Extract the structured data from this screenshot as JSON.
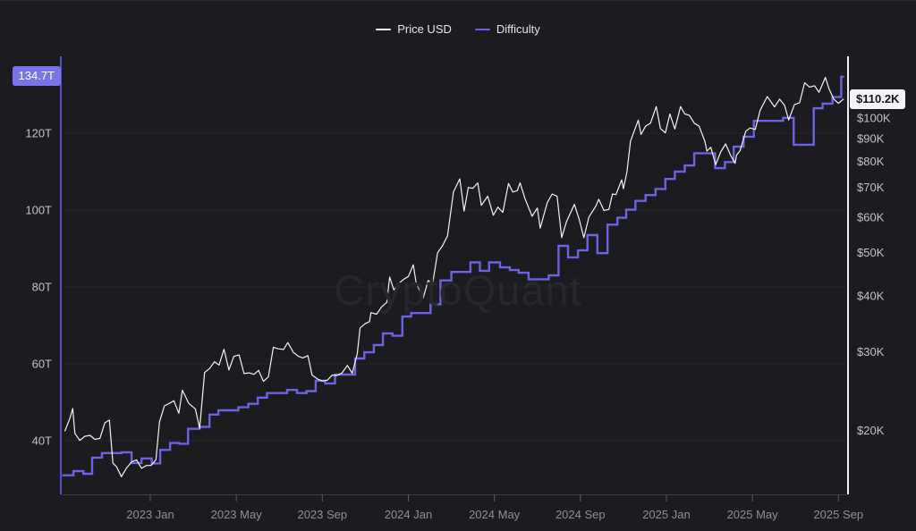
{
  "watermark": "CryptoQuant",
  "legend": {
    "price_label": "Price USD",
    "difficulty_label": "Difficulty"
  },
  "colors": {
    "background": "#1b1b20",
    "gridline": "#24242a",
    "price_line": "#f4f4f6",
    "difficulty_line": "#6b63e2",
    "left_axis": "#564fd0",
    "right_axis": "#ededf0",
    "x_label": "#8f8f96",
    "y_label": "#c2c2c8",
    "badge_left_bg": "#7974e8",
    "badge_right_bg": "#f4f4f6",
    "watermark": "#27272e"
  },
  "chart_data": {
    "type": "line",
    "title": "",
    "x_axis": {
      "ticks": [
        {
          "label": "2023 Jan",
          "date": "2023-01-01"
        },
        {
          "label": "2023 May",
          "date": "2023-05-01"
        },
        {
          "label": "2023 Sep",
          "date": "2023-09-01"
        },
        {
          "label": "2024 Jan",
          "date": "2024-01-01"
        },
        {
          "label": "2024 May",
          "date": "2024-05-01"
        },
        {
          "label": "2024 Sep",
          "date": "2024-09-01"
        },
        {
          "label": "2025 Jan",
          "date": "2025-01-01"
        },
        {
          "label": "2025 May",
          "date": "2025-05-01"
        },
        {
          "label": "2025 Sep",
          "date": "2025-09-01"
        }
      ],
      "range": [
        "2022-08-26",
        "2025-09-10"
      ]
    },
    "y_left": {
      "title": "Difficulty",
      "scale": "linear",
      "unit": "T",
      "ticks": [
        {
          "label": "40T",
          "value": 40
        },
        {
          "label": "60T",
          "value": 60
        },
        {
          "label": "80T",
          "value": 80
        },
        {
          "label": "100T",
          "value": 100
        },
        {
          "label": "120T",
          "value": 120
        }
      ],
      "current_label": "134.7T",
      "current_value": 134.7
    },
    "y_right": {
      "title": "Price USD",
      "scale": "log",
      "unit": "USD",
      "ticks": [
        {
          "label": "$20K",
          "value": 20000
        },
        {
          "label": "$30K",
          "value": 30000
        },
        {
          "label": "$40K",
          "value": 40000
        },
        {
          "label": "$50K",
          "value": 50000
        },
        {
          "label": "$60K",
          "value": 60000
        },
        {
          "label": "$70K",
          "value": 70000
        },
        {
          "label": "$80K",
          "value": 80000
        },
        {
          "label": "$90K",
          "value": 90000
        },
        {
          "label": "$100K",
          "value": 100000
        }
      ],
      "current_label": "$110.2K",
      "current_value": 110200
    },
    "series": [
      {
        "name": "Price USD",
        "axis": "right",
        "style": "line",
        "color": "#f4f4f6",
        "data": [
          [
            "2022-09-02",
            19950
          ],
          [
            "2022-09-09",
            21300
          ],
          [
            "2022-09-13",
            22400
          ],
          [
            "2022-09-16",
            19700
          ],
          [
            "2022-09-23",
            19000
          ],
          [
            "2022-09-30",
            19400
          ],
          [
            "2022-10-07",
            19500
          ],
          [
            "2022-10-14",
            19100
          ],
          [
            "2022-10-21",
            19200
          ],
          [
            "2022-10-28",
            20800
          ],
          [
            "2022-11-04",
            21100
          ],
          [
            "2022-11-09",
            16900
          ],
          [
            "2022-11-14",
            16600
          ],
          [
            "2022-11-21",
            15760
          ],
          [
            "2022-11-28",
            16450
          ],
          [
            "2022-12-05",
            17000
          ],
          [
            "2022-12-12",
            17200
          ],
          [
            "2022-12-19",
            16450
          ],
          [
            "2022-12-26",
            16700
          ],
          [
            "2023-01-02",
            16700
          ],
          [
            "2023-01-09",
            17200
          ],
          [
            "2023-01-14",
            20900
          ],
          [
            "2023-01-21",
            22700
          ],
          [
            "2023-01-28",
            23000
          ],
          [
            "2023-02-04",
            23300
          ],
          [
            "2023-02-11",
            21850
          ],
          [
            "2023-02-16",
            24600
          ],
          [
            "2023-02-25",
            23000
          ],
          [
            "2023-03-04",
            22350
          ],
          [
            "2023-03-10",
            20200
          ],
          [
            "2023-03-17",
            26950
          ],
          [
            "2023-03-24",
            27500
          ],
          [
            "2023-03-31",
            28500
          ],
          [
            "2023-04-07",
            28000
          ],
          [
            "2023-04-14",
            30400
          ],
          [
            "2023-04-21",
            27300
          ],
          [
            "2023-04-28",
            29300
          ],
          [
            "2023-05-05",
            29500
          ],
          [
            "2023-05-12",
            26800
          ],
          [
            "2023-05-19",
            26900
          ],
          [
            "2023-05-26",
            26700
          ],
          [
            "2023-06-02",
            27250
          ],
          [
            "2023-06-09",
            25750
          ],
          [
            "2023-06-16",
            26350
          ],
          [
            "2023-06-23",
            30700
          ],
          [
            "2023-06-30",
            30450
          ],
          [
            "2023-07-07",
            30350
          ],
          [
            "2023-07-13",
            31450
          ],
          [
            "2023-07-21",
            29900
          ],
          [
            "2023-07-28",
            29300
          ],
          [
            "2023-08-04",
            29050
          ],
          [
            "2023-08-11",
            29400
          ],
          [
            "2023-08-17",
            26600
          ],
          [
            "2023-08-25",
            26050
          ],
          [
            "2023-09-01",
            25800
          ],
          [
            "2023-09-08",
            25900
          ],
          [
            "2023-09-15",
            26600
          ],
          [
            "2023-09-22",
            26550
          ],
          [
            "2023-09-29",
            26900
          ],
          [
            "2023-10-06",
            27950
          ],
          [
            "2023-10-13",
            26850
          ],
          [
            "2023-10-20",
            29700
          ],
          [
            "2023-10-24",
            33900
          ],
          [
            "2023-10-31",
            34650
          ],
          [
            "2023-11-07",
            35050
          ],
          [
            "2023-11-09",
            36700
          ],
          [
            "2023-11-17",
            36400
          ],
          [
            "2023-11-24",
            37800
          ],
          [
            "2023-12-01",
            38700
          ],
          [
            "2023-12-05",
            44100
          ],
          [
            "2023-12-11",
            41250
          ],
          [
            "2023-12-18",
            42650
          ],
          [
            "2023-12-25",
            43600
          ],
          [
            "2024-01-01",
            44200
          ],
          [
            "2024-01-08",
            46950
          ],
          [
            "2024-01-12",
            42800
          ],
          [
            "2024-01-22",
            39550
          ],
          [
            "2024-01-29",
            43300
          ],
          [
            "2024-02-05",
            42700
          ],
          [
            "2024-02-12",
            49950
          ],
          [
            "2024-02-19",
            51800
          ],
          [
            "2024-02-26",
            54500
          ],
          [
            "2024-03-04",
            68300
          ],
          [
            "2024-03-13",
            73100
          ],
          [
            "2024-03-19",
            61900
          ],
          [
            "2024-03-25",
            69900
          ],
          [
            "2024-04-01",
            69650
          ],
          [
            "2024-04-08",
            71600
          ],
          [
            "2024-04-13",
            63800
          ],
          [
            "2024-04-22",
            66850
          ],
          [
            "2024-04-30",
            60600
          ],
          [
            "2024-05-06",
            63200
          ],
          [
            "2024-05-13",
            61500
          ],
          [
            "2024-05-21",
            71400
          ],
          [
            "2024-05-27",
            68300
          ],
          [
            "2024-06-03",
            68800
          ],
          [
            "2024-06-07",
            71600
          ],
          [
            "2024-06-14",
            66000
          ],
          [
            "2024-06-24",
            60300
          ],
          [
            "2024-07-01",
            62900
          ],
          [
            "2024-07-05",
            56700
          ],
          [
            "2024-07-15",
            64700
          ],
          [
            "2024-07-22",
            67600
          ],
          [
            "2024-07-29",
            66800
          ],
          [
            "2024-08-05",
            54000
          ],
          [
            "2024-08-12",
            58700
          ],
          [
            "2024-08-23",
            64100
          ],
          [
            "2024-08-30",
            59100
          ],
          [
            "2024-09-06",
            53950
          ],
          [
            "2024-09-13",
            60000
          ],
          [
            "2024-09-23",
            63600
          ],
          [
            "2024-09-27",
            65800
          ],
          [
            "2024-10-04",
            62100
          ],
          [
            "2024-10-11",
            62450
          ],
          [
            "2024-10-16",
            67600
          ],
          [
            "2024-10-21",
            67400
          ],
          [
            "2024-10-29",
            72700
          ],
          [
            "2024-11-01",
            69500
          ],
          [
            "2024-11-06",
            75600
          ],
          [
            "2024-11-11",
            88700
          ],
          [
            "2024-11-22",
            98900
          ],
          [
            "2024-11-26",
            91900
          ],
          [
            "2024-12-02",
            95900
          ],
          [
            "2024-12-09",
            97400
          ],
          [
            "2024-12-17",
            106100
          ],
          [
            "2024-12-23",
            94700
          ],
          [
            "2024-12-30",
            92600
          ],
          [
            "2025-01-06",
            102100
          ],
          [
            "2025-01-13",
            94500
          ],
          [
            "2025-01-21",
            106100
          ],
          [
            "2025-01-27",
            102100
          ],
          [
            "2025-02-03",
            101400
          ],
          [
            "2025-02-10",
            97400
          ],
          [
            "2025-02-17",
            95800
          ],
          [
            "2025-02-25",
            88700
          ],
          [
            "2025-02-28",
            84350
          ],
          [
            "2025-03-03",
            86000
          ],
          [
            "2025-03-10",
            78600
          ],
          [
            "2025-03-17",
            84000
          ],
          [
            "2025-03-24",
            87500
          ],
          [
            "2025-03-31",
            82550
          ],
          [
            "2025-04-07",
            79200
          ],
          [
            "2025-04-09",
            82600
          ],
          [
            "2025-04-14",
            84500
          ],
          [
            "2025-04-22",
            93400
          ],
          [
            "2025-04-28",
            95000
          ],
          [
            "2025-05-05",
            94300
          ],
          [
            "2025-05-12",
            104100
          ],
          [
            "2025-05-22",
            111700
          ],
          [
            "2025-05-26",
            109400
          ],
          [
            "2025-06-02",
            105900
          ],
          [
            "2025-06-09",
            110200
          ],
          [
            "2025-06-16",
            106800
          ],
          [
            "2025-06-22",
            99000
          ],
          [
            "2025-06-30",
            107100
          ],
          [
            "2025-07-07",
            108200
          ],
          [
            "2025-07-14",
            119900
          ],
          [
            "2025-07-21",
            117300
          ],
          [
            "2025-07-28",
            118100
          ],
          [
            "2025-08-04",
            114200
          ],
          [
            "2025-08-13",
            123300
          ],
          [
            "2025-08-18",
            116300
          ],
          [
            "2025-08-25",
            110100
          ],
          [
            "2025-09-01",
            107900
          ],
          [
            "2025-09-08",
            110200
          ]
        ]
      },
      {
        "name": "Difficulty",
        "axis": "left",
        "style": "step",
        "color": "#6b63e2",
        "data": [
          [
            "2022-09-01",
            31.0
          ],
          [
            "2022-09-14",
            32.1
          ],
          [
            "2022-09-28",
            31.4
          ],
          [
            "2022-10-10",
            35.6
          ],
          [
            "2022-10-24",
            36.8
          ],
          [
            "2022-11-21",
            37.0
          ],
          [
            "2022-12-05",
            34.2
          ],
          [
            "2022-12-19",
            35.4
          ],
          [
            "2023-01-03",
            34.1
          ],
          [
            "2023-01-15",
            37.6
          ],
          [
            "2023-01-29",
            39.4
          ],
          [
            "2023-02-12",
            39.2
          ],
          [
            "2023-02-24",
            43.1
          ],
          [
            "2023-03-10",
            43.6
          ],
          [
            "2023-03-24",
            46.8
          ],
          [
            "2023-04-06",
            47.9
          ],
          [
            "2023-05-04",
            48.7
          ],
          [
            "2023-05-18",
            49.6
          ],
          [
            "2023-06-01",
            51.2
          ],
          [
            "2023-06-14",
            52.4
          ],
          [
            "2023-07-12",
            53.2
          ],
          [
            "2023-07-26",
            52.4
          ],
          [
            "2023-08-09",
            52.9
          ],
          [
            "2023-08-22",
            55.6
          ],
          [
            "2023-09-05",
            54.9
          ],
          [
            "2023-09-19",
            57.2
          ],
          [
            "2023-10-17",
            61.4
          ],
          [
            "2023-10-30",
            63.0
          ],
          [
            "2023-11-13",
            64.9
          ],
          [
            "2023-11-26",
            67.9
          ],
          [
            "2023-12-09",
            67.3
          ],
          [
            "2023-12-23",
            72.3
          ],
          [
            "2024-01-05",
            73.2
          ],
          [
            "2024-02-02",
            75.5
          ],
          [
            "2024-02-16",
            81.7
          ],
          [
            "2024-03-01",
            83.9
          ],
          [
            "2024-03-28",
            86.4
          ],
          [
            "2024-04-11",
            84.2
          ],
          [
            "2024-04-24",
            86.4
          ],
          [
            "2024-05-09",
            85.1
          ],
          [
            "2024-05-23",
            84.4
          ],
          [
            "2024-06-05",
            83.7
          ],
          [
            "2024-06-19",
            82.0
          ],
          [
            "2024-07-17",
            83.0
          ],
          [
            "2024-07-31",
            90.7
          ],
          [
            "2024-08-14",
            87.7
          ],
          [
            "2024-08-28",
            89.5
          ],
          [
            "2024-09-11",
            93.5
          ],
          [
            "2024-09-25",
            88.8
          ],
          [
            "2024-10-09",
            96.2
          ],
          [
            "2024-10-23",
            98.0
          ],
          [
            "2024-11-05",
            100.1
          ],
          [
            "2024-11-18",
            102.4
          ],
          [
            "2024-12-02",
            103.9
          ],
          [
            "2024-12-16",
            105.5
          ],
          [
            "2024-12-30",
            108.1
          ],
          [
            "2025-01-13",
            110.0
          ],
          [
            "2025-01-27",
            111.6
          ],
          [
            "2025-02-10",
            114.8
          ],
          [
            "2025-03-09",
            110.9
          ],
          [
            "2025-03-23",
            112.5
          ],
          [
            "2025-04-05",
            116.5
          ],
          [
            "2025-04-19",
            119.1
          ],
          [
            "2025-05-03",
            123.2
          ],
          [
            "2025-06-14",
            124.0
          ],
          [
            "2025-06-29",
            117.0
          ],
          [
            "2025-07-27",
            126.5
          ],
          [
            "2025-08-09",
            127.7
          ],
          [
            "2025-08-23",
            129.4
          ],
          [
            "2025-09-05",
            134.7
          ]
        ]
      }
    ],
    "legend_position": "top-center",
    "grid": "horizontal-only"
  }
}
